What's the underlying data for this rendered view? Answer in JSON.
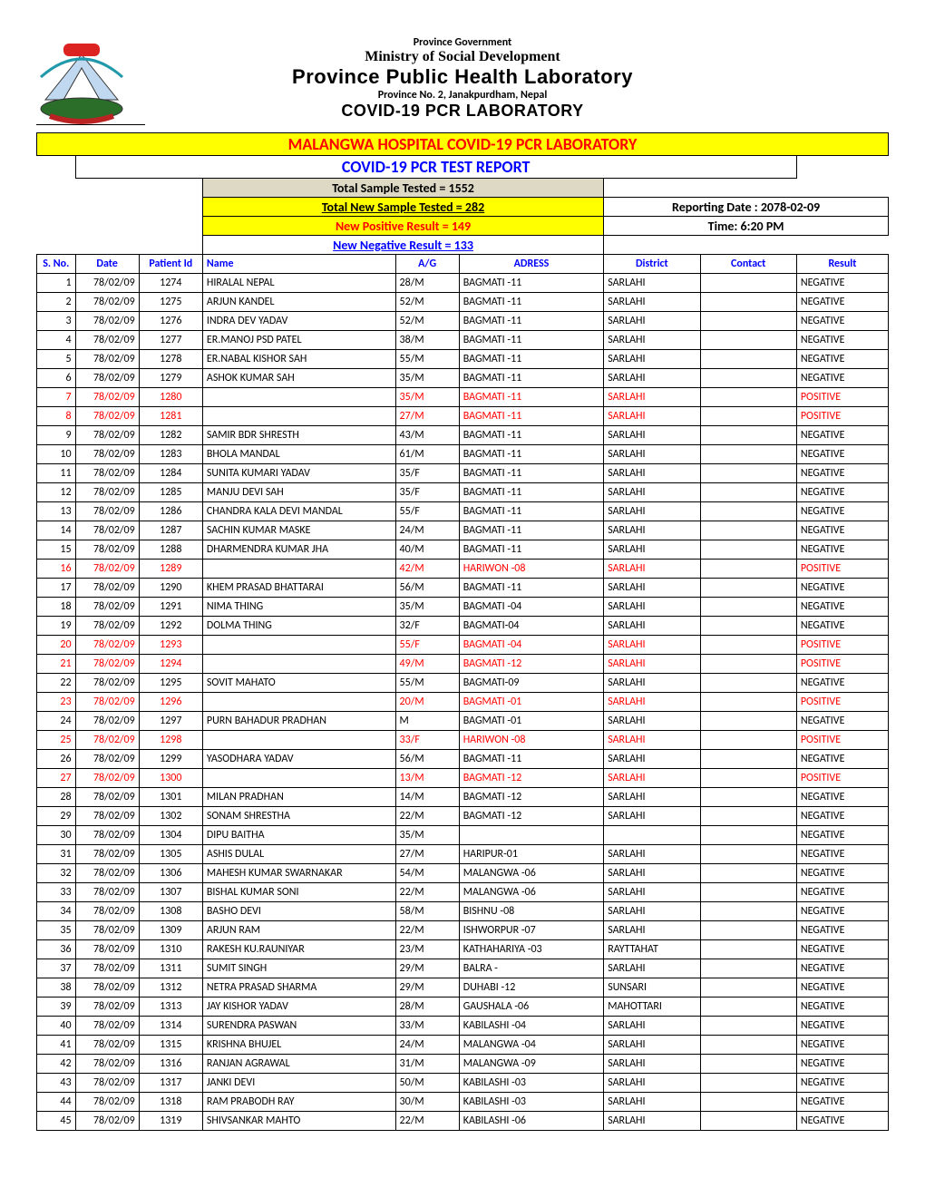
{
  "header": {
    "gov": "Province Government",
    "ministry": "Ministry of Social Development",
    "lab_title": "Province Public Health Laboratory",
    "province": "Province No. 2, Janakpurdham, Nepal",
    "covid_lab": "COVID-19 PCR LABORATORY"
  },
  "titles": {
    "hospital": "MALANGWA HOSPITAL COVID-19 PCR LABORATORY",
    "report": "COVID-19 PCR TEST REPORT"
  },
  "summary": {
    "total_tested": "Total Sample Tested = 1552",
    "new_tested": "Total New Sample Tested = 282",
    "new_positive": "New Positive Result = 149",
    "new_negative": "New Negative Result = 133",
    "reporting_date": "Reporting Date : 2078-02-09",
    "time": "Time: 6:20 PM"
  },
  "columns": {
    "sno": "S. No.",
    "date": "Date",
    "pid": "Patient Id",
    "name": "Name",
    "ag": "A/G",
    "addr": "ADRESS",
    "dist": "District",
    "contact": "Contact",
    "result": "Result"
  },
  "rows": [
    {
      "sno": "1",
      "date": "78/02/09",
      "pid": "1274",
      "name": "HIRALAL NEPAL",
      "ag": "28/M",
      "addr": "BAGMATI -11",
      "dist": "SARLAHI",
      "contact": "",
      "result": "NEGATIVE",
      "pos": false
    },
    {
      "sno": "2",
      "date": "78/02/09",
      "pid": "1275",
      "name": "ARJUN KANDEL",
      "ag": "52/M",
      "addr": "BAGMATI -11",
      "dist": "SARLAHI",
      "contact": "",
      "result": "NEGATIVE",
      "pos": false
    },
    {
      "sno": "3",
      "date": "78/02/09",
      "pid": "1276",
      "name": "INDRA DEV YADAV",
      "ag": "52/M",
      "addr": "BAGMATI -11",
      "dist": "SARLAHI",
      "contact": "",
      "result": "NEGATIVE",
      "pos": false
    },
    {
      "sno": "4",
      "date": "78/02/09",
      "pid": "1277",
      "name": "ER.MANOJ PSD PATEL",
      "ag": "38/M",
      "addr": "BAGMATI -11",
      "dist": "SARLAHI",
      "contact": "",
      "result": "NEGATIVE",
      "pos": false
    },
    {
      "sno": "5",
      "date": "78/02/09",
      "pid": "1278",
      "name": "ER.NABAL KISHOR SAH",
      "ag": "55/M",
      "addr": "BAGMATI -11",
      "dist": "SARLAHI",
      "contact": "",
      "result": "NEGATIVE",
      "pos": false
    },
    {
      "sno": "6",
      "date": "78/02/09",
      "pid": "1279",
      "name": "ASHOK KUMAR SAH",
      "ag": "35/M",
      "addr": "BAGMATI -11",
      "dist": "SARLAHI",
      "contact": "",
      "result": "NEGATIVE",
      "pos": false
    },
    {
      "sno": "7",
      "date": "78/02/09",
      "pid": "1280",
      "name": "",
      "ag": "35/M",
      "addr": "BAGMATI -11",
      "dist": "SARLAHI",
      "contact": "",
      "result": "POSITIVE",
      "pos": true
    },
    {
      "sno": "8",
      "date": "78/02/09",
      "pid": "1281",
      "name": "",
      "ag": "27/M",
      "addr": "BAGMATI -11",
      "dist": "SARLAHI",
      "contact": "",
      "result": "POSITIVE",
      "pos": true
    },
    {
      "sno": "9",
      "date": "78/02/09",
      "pid": "1282",
      "name": "SAMIR BDR SHRESTH",
      "ag": "43/M",
      "addr": "BAGMATI -11",
      "dist": "SARLAHI",
      "contact": "",
      "result": "NEGATIVE",
      "pos": false
    },
    {
      "sno": "10",
      "date": "78/02/09",
      "pid": "1283",
      "name": "BHOLA MANDAL",
      "ag": "61/M",
      "addr": "BAGMATI -11",
      "dist": "SARLAHI",
      "contact": "",
      "result": "NEGATIVE",
      "pos": false
    },
    {
      "sno": "11",
      "date": "78/02/09",
      "pid": "1284",
      "name": "SUNITA KUMARI YADAV",
      "ag": "35/F",
      "addr": "BAGMATI -11",
      "dist": "SARLAHI",
      "contact": "",
      "result": "NEGATIVE",
      "pos": false
    },
    {
      "sno": "12",
      "date": "78/02/09",
      "pid": "1285",
      "name": "MANJU DEVI SAH",
      "ag": "35/F",
      "addr": "BAGMATI -11",
      "dist": "SARLAHI",
      "contact": "",
      "result": "NEGATIVE",
      "pos": false
    },
    {
      "sno": "13",
      "date": "78/02/09",
      "pid": "1286",
      "name": "CHANDRA KALA DEVI MANDAL",
      "ag": "55/F",
      "addr": "BAGMATI -11",
      "dist": "SARLAHI",
      "contact": "",
      "result": "NEGATIVE",
      "pos": false
    },
    {
      "sno": "14",
      "date": "78/02/09",
      "pid": "1287",
      "name": "SACHIN KUMAR MASKE",
      "ag": "24/M",
      "addr": "BAGMATI -11",
      "dist": "SARLAHI",
      "contact": "",
      "result": "NEGATIVE",
      "pos": false
    },
    {
      "sno": "15",
      "date": "78/02/09",
      "pid": "1288",
      "name": "DHARMENDRA KUMAR JHA",
      "ag": "40/M",
      "addr": "BAGMATI -11",
      "dist": "SARLAHI",
      "contact": "",
      "result": "NEGATIVE",
      "pos": false
    },
    {
      "sno": "16",
      "date": "78/02/09",
      "pid": "1289",
      "name": "",
      "ag": "42/M",
      "addr": "HARIWON -08",
      "dist": "SARLAHI",
      "contact": "",
      "result": "POSITIVE",
      "pos": true
    },
    {
      "sno": "17",
      "date": "78/02/09",
      "pid": "1290",
      "name": "KHEM PRASAD BHATTARAI",
      "ag": "56/M",
      "addr": "BAGMATI -11",
      "dist": "SARLAHI",
      "contact": "",
      "result": "NEGATIVE",
      "pos": false
    },
    {
      "sno": "18",
      "date": "78/02/09",
      "pid": "1291",
      "name": "NIMA THING",
      "ag": "35/M",
      "addr": "BAGMATI -04",
      "dist": "SARLAHI",
      "contact": "",
      "result": "NEGATIVE",
      "pos": false
    },
    {
      "sno": "19",
      "date": "78/02/09",
      "pid": "1292",
      "name": "DOLMA THING",
      "ag": "32/F",
      "addr": "BAGMATI-04",
      "dist": "SARLAHI",
      "contact": "",
      "result": "NEGATIVE",
      "pos": false
    },
    {
      "sno": "20",
      "date": "78/02/09",
      "pid": "1293",
      "name": "",
      "ag": "55/F",
      "addr": "BAGMATI -04",
      "dist": "SARLAHI",
      "contact": "",
      "result": "POSITIVE",
      "pos": true
    },
    {
      "sno": "21",
      "date": "78/02/09",
      "pid": "1294",
      "name": "",
      "ag": "49/M",
      "addr": "BAGMATI -12",
      "dist": "SARLAHI",
      "contact": "",
      "result": "POSITIVE",
      "pos": true
    },
    {
      "sno": "22",
      "date": "78/02/09",
      "pid": "1295",
      "name": "SOVIT MAHATO",
      "ag": "55/M",
      "addr": "BAGMATI-09",
      "dist": "SARLAHI",
      "contact": "",
      "result": "NEGATIVE",
      "pos": false
    },
    {
      "sno": "23",
      "date": "78/02/09",
      "pid": "1296",
      "name": "",
      "ag": "20/M",
      "addr": "BAGMATI -01",
      "dist": "SARLAHI",
      "contact": "",
      "result": "POSITIVE",
      "pos": true
    },
    {
      "sno": "24",
      "date": "78/02/09",
      "pid": "1297",
      "name": "PURN BAHADUR PRADHAN",
      "ag": "M",
      "addr": "BAGMATI -01",
      "dist": "SARLAHI",
      "contact": "",
      "result": "NEGATIVE",
      "pos": false
    },
    {
      "sno": "25",
      "date": "78/02/09",
      "pid": "1298",
      "name": "",
      "ag": "33/F",
      "addr": "HARIWON -08",
      "dist": "SARLAHI",
      "contact": "",
      "result": "POSITIVE",
      "pos": true
    },
    {
      "sno": "26",
      "date": "78/02/09",
      "pid": "1299",
      "name": "YASODHARA YADAV",
      "ag": "56/M",
      "addr": "BAGMATI -11",
      "dist": "SARLAHI",
      "contact": "",
      "result": "NEGATIVE",
      "pos": false
    },
    {
      "sno": "27",
      "date": "78/02/09",
      "pid": "1300",
      "name": "",
      "ag": "13/M",
      "addr": "BAGMATI -12",
      "dist": "SARLAHI",
      "contact": "",
      "result": "POSITIVE",
      "pos": true
    },
    {
      "sno": "28",
      "date": "78/02/09",
      "pid": "1301",
      "name": "MILAN PRADHAN",
      "ag": "14/M",
      "addr": "BAGMATI -12",
      "dist": "SARLAHI",
      "contact": "",
      "result": "NEGATIVE",
      "pos": false
    },
    {
      "sno": "29",
      "date": "78/02/09",
      "pid": "1302",
      "name": "SONAM SHRESTHA",
      "ag": "22/M",
      "addr": "BAGMATI -12",
      "dist": "SARLAHI",
      "contact": "",
      "result": "NEGATIVE",
      "pos": false
    },
    {
      "sno": "30",
      "date": "78/02/09",
      "pid": "1304",
      "name": "DIPU BAITHA",
      "ag": "35/M",
      "addr": "",
      "dist": "",
      "contact": "",
      "result": "NEGATIVE",
      "pos": false
    },
    {
      "sno": "31",
      "date": "78/02/09",
      "pid": "1305",
      "name": "ASHIS DULAL",
      "ag": "27/M",
      "addr": "HARIPUR-01",
      "dist": "SARLAHI",
      "contact": "",
      "result": "NEGATIVE",
      "pos": false
    },
    {
      "sno": "32",
      "date": "78/02/09",
      "pid": "1306",
      "name": "MAHESH KUMAR SWARNAKAR",
      "ag": "54/M",
      "addr": "MALANGWA -06",
      "dist": "SARLAHI",
      "contact": "",
      "result": "NEGATIVE",
      "pos": false
    },
    {
      "sno": "33",
      "date": "78/02/09",
      "pid": "1307",
      "name": "BISHAL KUMAR SONI",
      "ag": "22/M",
      "addr": "MALANGWA -06",
      "dist": "SARLAHI",
      "contact": "",
      "result": "NEGATIVE",
      "pos": false
    },
    {
      "sno": "34",
      "date": "78/02/09",
      "pid": "1308",
      "name": "BASHO DEVI",
      "ag": "58/M",
      "addr": "BISHNU -08",
      "dist": "SARLAHI",
      "contact": "",
      "result": "NEGATIVE",
      "pos": false
    },
    {
      "sno": "35",
      "date": "78/02/09",
      "pid": "1309",
      "name": "ARJUN RAM",
      "ag": "22/M",
      "addr": "ISHWORPUR -07",
      "dist": "SARLAHI",
      "contact": "",
      "result": "NEGATIVE",
      "pos": false
    },
    {
      "sno": "36",
      "date": "78/02/09",
      "pid": "1310",
      "name": "RAKESH KU.RAUNIYAR",
      "ag": "23/M",
      "addr": "KATHAHARIYA -03",
      "dist": "RAYTTAHAT",
      "contact": "",
      "result": "NEGATIVE",
      "pos": false
    },
    {
      "sno": "37",
      "date": "78/02/09",
      "pid": "1311",
      "name": "SUMIT SINGH",
      "ag": "29/M",
      "addr": "BALRA -",
      "dist": "SARLAHI",
      "contact": "",
      "result": "NEGATIVE",
      "pos": false
    },
    {
      "sno": "38",
      "date": "78/02/09",
      "pid": "1312",
      "name": "NETRA PRASAD SHARMA",
      "ag": "29/M",
      "addr": "DUHABI -12",
      "dist": "SUNSARI",
      "contact": "",
      "result": "NEGATIVE",
      "pos": false
    },
    {
      "sno": "39",
      "date": "78/02/09",
      "pid": "1313",
      "name": "JAY KISHOR YADAV",
      "ag": "28/M",
      "addr": "GAUSHALA -06",
      "dist": "MAHOTTARI",
      "contact": "",
      "result": "NEGATIVE",
      "pos": false
    },
    {
      "sno": "40",
      "date": "78/02/09",
      "pid": "1314",
      "name": "SURENDRA PASWAN",
      "ag": "33/M",
      "addr": "KABILASHI -04",
      "dist": "SARLAHI",
      "contact": "",
      "result": "NEGATIVE",
      "pos": false
    },
    {
      "sno": "41",
      "date": "78/02/09",
      "pid": "1315",
      "name": "KRISHNA BHUJEL",
      "ag": "24/M",
      "addr": "MALANGWA -04",
      "dist": "SARLAHI",
      "contact": "",
      "result": "NEGATIVE",
      "pos": false
    },
    {
      "sno": "42",
      "date": "78/02/09",
      "pid": "1316",
      "name": "RANJAN AGRAWAL",
      "ag": "31/M",
      "addr": "MALANGWA -09",
      "dist": "SARLAHI",
      "contact": "",
      "result": "NEGATIVE",
      "pos": false
    },
    {
      "sno": "43",
      "date": "78/02/09",
      "pid": "1317",
      "name": "JANKI DEVI",
      "ag": "50/M",
      "addr": "KABILASHI -03",
      "dist": "SARLAHI",
      "contact": "",
      "result": "NEGATIVE",
      "pos": false
    },
    {
      "sno": "44",
      "date": "78/02/09",
      "pid": "1318",
      "name": "RAM PRABODH RAY",
      "ag": "30/M",
      "addr": "KABILASHI -03",
      "dist": "SARLAHI",
      "contact": "",
      "result": "NEGATIVE",
      "pos": false
    },
    {
      "sno": "45",
      "date": "78/02/09",
      "pid": "1319",
      "name": "SHIVSANKAR MAHTO",
      "ag": "22/M",
      "addr": "KABILASHI -06",
      "dist": "SARLAHI",
      "contact": "",
      "result": "NEGATIVE",
      "pos": false
    }
  ]
}
